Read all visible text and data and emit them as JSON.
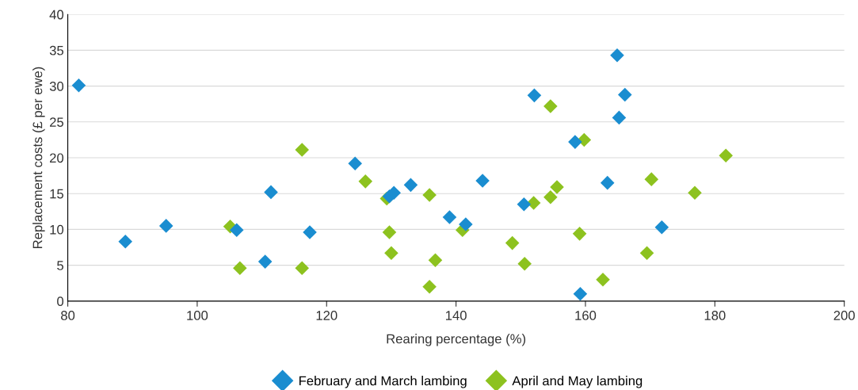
{
  "chart_data": {
    "type": "scatter",
    "xlabel": "Rearing percentage (%)",
    "ylabel": "Replacement costs (£ per ewe)",
    "xlim": [
      80,
      200
    ],
    "xticks": [
      80,
      100,
      120,
      140,
      160,
      180,
      200
    ],
    "ylim": [
      0,
      40
    ],
    "yticks": [
      0,
      5,
      10,
      15,
      20,
      25,
      30,
      35,
      40
    ],
    "grid": "y",
    "legend": "bottom",
    "marker": "diamond",
    "series": [
      {
        "name": "February and March lambing",
        "color": "#1a8dd0",
        "x": [
          81.7,
          88.9,
          95.2,
          106.1,
          111.4,
          110.5,
          117.4,
          124.4,
          129.7,
          130.4,
          133.0,
          139.0,
          141.5,
          144.1,
          150.5,
          152.1,
          158.4,
          159.2,
          163.4,
          164.9,
          165.2,
          166.1,
          171.8
        ],
        "values": [
          30.1,
          8.3,
          10.5,
          9.9,
          15.2,
          5.5,
          9.6,
          19.2,
          14.6,
          15.1,
          16.2,
          11.7,
          10.7,
          16.8,
          13.5,
          28.7,
          22.2,
          1.0,
          16.5,
          34.3,
          25.6,
          28.8,
          10.3
        ]
      },
      {
        "name": "April and May lambing",
        "color": "#8dc21f",
        "x": [
          105.1,
          106.6,
          116.2,
          116.2,
          126.0,
          129.7,
          130.0,
          129.3,
          135.9,
          135.9,
          136.8,
          141.0,
          148.7,
          150.6,
          152.0,
          154.6,
          154.6,
          155.6,
          159.1,
          159.8,
          162.7,
          169.5,
          170.2,
          176.9,
          181.7
        ],
        "values": [
          10.4,
          4.6,
          21.1,
          4.6,
          16.7,
          9.6,
          6.7,
          14.3,
          2.0,
          14.8,
          5.7,
          9.9,
          8.1,
          5.2,
          13.7,
          27.2,
          14.5,
          15.9,
          9.4,
          22.5,
          3.0,
          6.7,
          17.0,
          15.1,
          20.3
        ]
      }
    ]
  }
}
